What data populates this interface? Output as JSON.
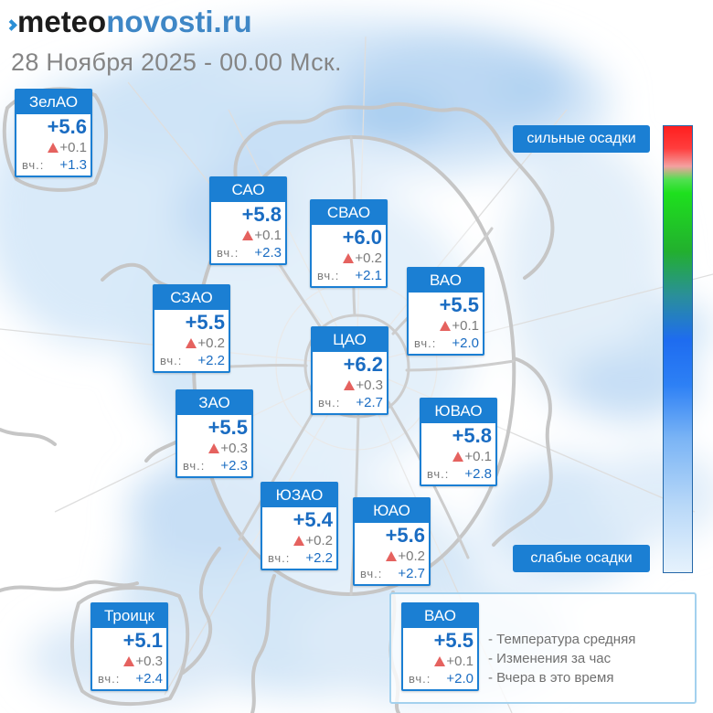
{
  "logo": {
    "dark_part": "meteo",
    "blue_part": "novosti.ru",
    "icon": "logo-chevron-icon"
  },
  "date_line": "28 Ноября 2025 - 00.00 Мск.",
  "yesterday_label": "вч.:",
  "districts": [
    {
      "name": "ЗелАО",
      "temp": "+5.6",
      "change": "+0.1",
      "yesterday": "+1.3"
    },
    {
      "name": "САО",
      "temp": "+5.8",
      "change": "+0.1",
      "yesterday": "+2.3"
    },
    {
      "name": "СВАО",
      "temp": "+6.0",
      "change": "+0.2",
      "yesterday": "+2.1"
    },
    {
      "name": "СЗАО",
      "temp": "+5.5",
      "change": "+0.2",
      "yesterday": "+2.2"
    },
    {
      "name": "ВАО",
      "temp": "+5.5",
      "change": "+0.1",
      "yesterday": "+2.0"
    },
    {
      "name": "ЦАО",
      "temp": "+6.2",
      "change": "+0.3",
      "yesterday": "+2.7"
    },
    {
      "name": "ЗАО",
      "temp": "+5.5",
      "change": "+0.3",
      "yesterday": "+2.3"
    },
    {
      "name": "ЮВАО",
      "temp": "+5.8",
      "change": "+0.1",
      "yesterday": "+2.8"
    },
    {
      "name": "ЮЗАО",
      "temp": "+5.4",
      "change": "+0.2",
      "yesterday": "+2.2"
    },
    {
      "name": "ЮАО",
      "temp": "+5.6",
      "change": "+0.2",
      "yesterday": "+2.7"
    },
    {
      "name": "Троицк",
      "temp": "+5.1",
      "change": "+0.3",
      "yesterday": "+2.4"
    }
  ],
  "precipitation_scale": {
    "top_label": "сильные осадки",
    "bottom_label": "слабые осадки"
  },
  "legend": {
    "sample": {
      "name": "ВАО",
      "temp": "+5.5",
      "change": "+0.1",
      "yesterday": "+2.0"
    },
    "items": [
      "- Температура средняя",
      "- Изменения за час",
      "- Вчера в это время"
    ]
  },
  "icons": {
    "change": "up-triangle-icon",
    "logo": "logo-chevron-icon"
  },
  "colors": {
    "accent": "#1b7fd3",
    "temperature": "#1a6cc2",
    "increase": "#e5625f",
    "muted": "#7a7a7a",
    "date": "#858585",
    "logo_dark": "#1c1c1c",
    "logo_blue": "#3f87c6",
    "logo_icon": "#2b8fd6"
  }
}
